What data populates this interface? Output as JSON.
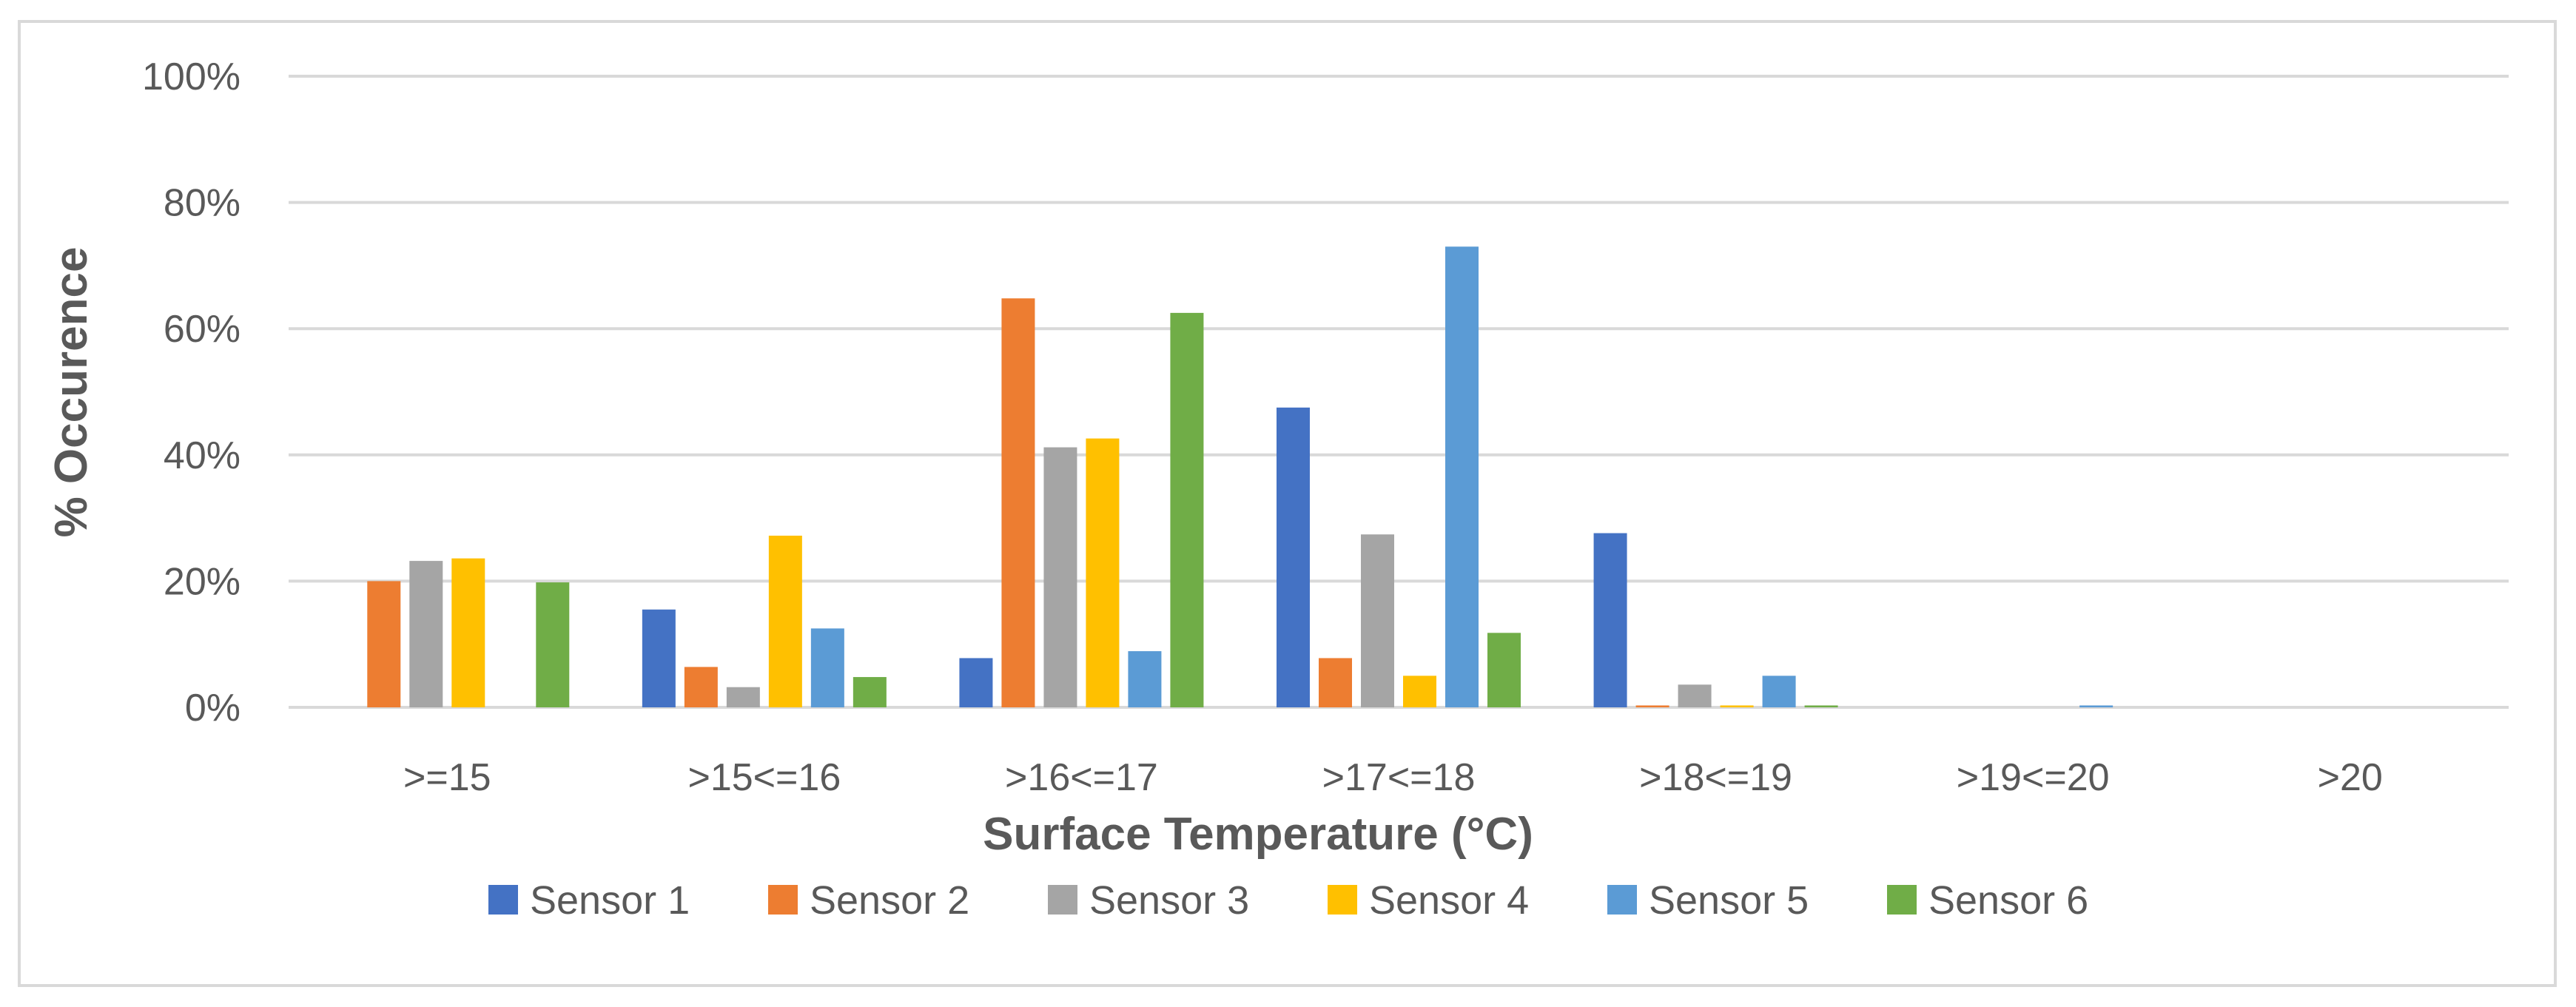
{
  "chart_data": {
    "type": "bar",
    "title": "",
    "xlabel": "Surface Temperature (°C)",
    "ylabel": "% Occurence",
    "ylim": [
      0,
      100
    ],
    "yticks": [
      0,
      20,
      40,
      60,
      80,
      100
    ],
    "ytick_labels": [
      "0%",
      "20%",
      "40%",
      "60%",
      "80%",
      "100%"
    ],
    "grid": true,
    "legend_position": "bottom",
    "categories": [
      ">=15",
      ">15<=16",
      ">16<=17",
      ">17<=18",
      ">18<=19",
      ">19<=20",
      ">20"
    ],
    "series": [
      {
        "name": "Sensor 1",
        "color": "#4472c4",
        "values": [
          0,
          15.5,
          7.8,
          47.5,
          27.6,
          0,
          0
        ]
      },
      {
        "name": "Sensor 2",
        "color": "#ed7d31",
        "values": [
          20,
          6.4,
          64.8,
          7.8,
          0.3,
          0,
          0
        ]
      },
      {
        "name": "Sensor 3",
        "color": "#a5a5a5",
        "values": [
          23.2,
          3.2,
          41.2,
          27.4,
          3.6,
          0,
          0
        ]
      },
      {
        "name": "Sensor 4",
        "color": "#ffc000",
        "values": [
          23.6,
          27.2,
          42.6,
          5,
          0.3,
          0,
          0
        ]
      },
      {
        "name": "Sensor 5",
        "color": "#5b9bd5",
        "values": [
          0,
          12.5,
          8.9,
          73,
          5,
          0.3,
          0
        ]
      },
      {
        "name": "Sensor 6",
        "color": "#70ad47",
        "values": [
          19.8,
          4.8,
          62.5,
          11.8,
          0.3,
          0,
          0
        ]
      }
    ]
  }
}
